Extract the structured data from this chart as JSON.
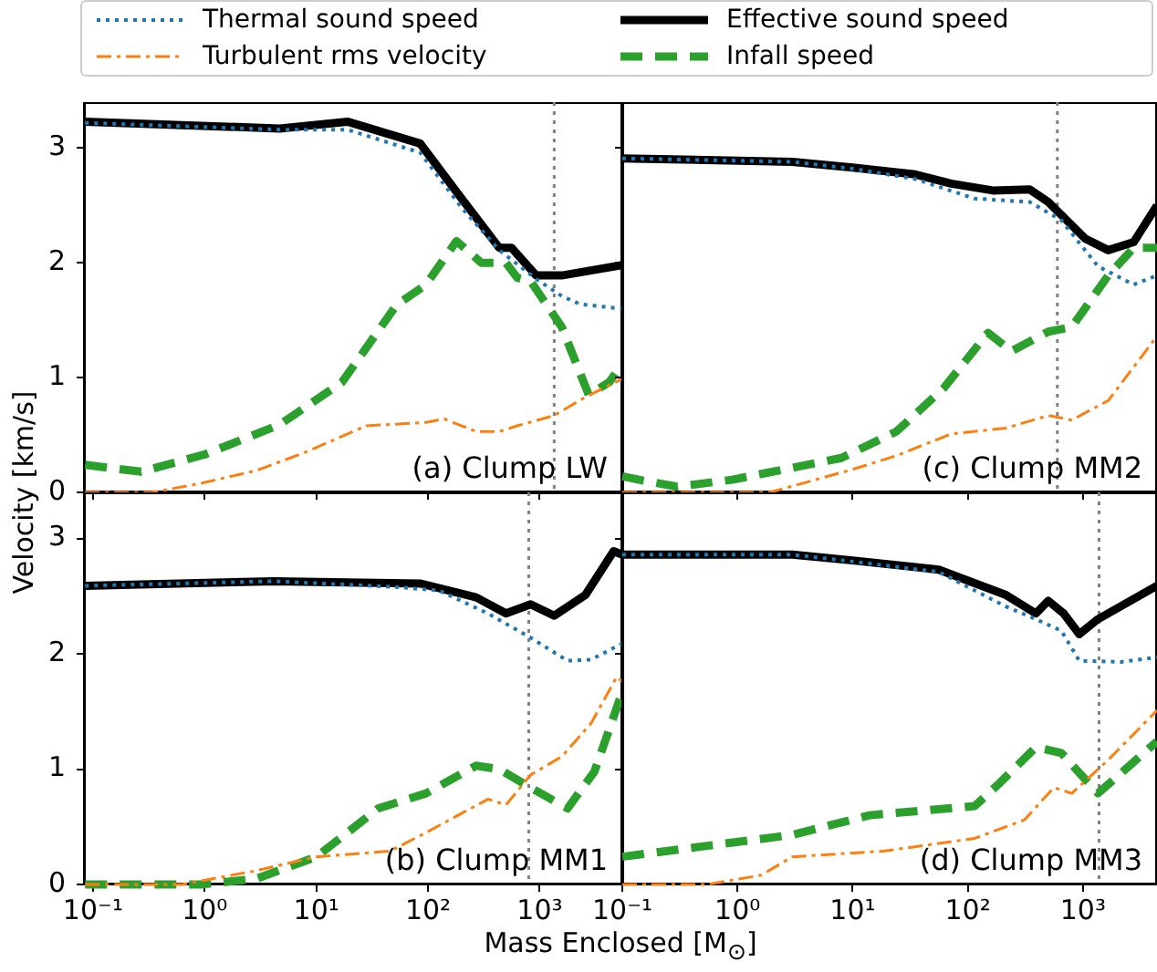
{
  "chart_data": [
    {
      "type": "line",
      "log": "x",
      "legend": "top",
      "ylabel": "Velocity [km/s]",
      "tick_labels": "y",
      "annotations": [
        "(a) Clump LW"
      ],
      "xlim": [
        0.083,
        5500
      ],
      "xticks": [
        {
          "value": 0.1,
          "label": null
        },
        {
          "value": 1,
          "label": null
        },
        {
          "value": 10,
          "label": null
        },
        {
          "value": 100,
          "label": null
        },
        {
          "value": 1000,
          "label": null
        }
      ],
      "ylim": [
        0,
        3.4
      ],
      "yticks": [
        0,
        1,
        2,
        3
      ],
      "ref_lines": [
        {
          "axis": "x",
          "value": 1350,
          "color": "#808080",
          "line_style": "dotted"
        }
      ],
      "series": [
        {
          "name": "Thermal sound speed",
          "color": "#1f77b4",
          "line_style": "dotted",
          "x": [
            0.085,
            4.7,
            19,
            85,
            200,
            435,
            930,
            1580,
            2300,
            5500
          ],
          "values": [
            3.22,
            3.16,
            3.16,
            2.96,
            2.48,
            2.11,
            1.86,
            1.71,
            1.64,
            1.6
          ]
        },
        {
          "name": "Turbulent rms velocity",
          "color": "#ff7f0e",
          "line_style": "dashdot",
          "x": [
            0.085,
            0.34,
            0.93,
            2.9,
            8,
            28,
            96,
            140,
            270,
            435,
            630,
            1350,
            2570,
            5500
          ],
          "values": [
            0,
            0,
            0.08,
            0.19,
            0.35,
            0.58,
            0.61,
            0.64,
            0.53,
            0.53,
            0.58,
            0.67,
            0.83,
            0.99
          ]
        },
        {
          "name": "Effective sound speed",
          "color": "#000000",
          "line_style": "solid",
          "x": [
            0.085,
            4.7,
            19,
            85,
            200,
            435,
            560,
            930,
            1580,
            5500
          ],
          "values": [
            3.23,
            3.17,
            3.23,
            3.04,
            2.56,
            2.13,
            2.13,
            1.89,
            1.89,
            1.98
          ]
        },
        {
          "name": "Infall speed",
          "color": "#2ca02c",
          "line_style": "dashed",
          "x": [
            0.085,
            0.27,
            1,
            4.7,
            17,
            52,
            96,
            180,
            300,
            500,
            630,
            830,
            1580,
            2750,
            4200,
            5500
          ],
          "values": [
            0.24,
            0.18,
            0.33,
            0.59,
            0.96,
            1.63,
            1.81,
            2.19,
            2.0,
            2.0,
            1.87,
            1.84,
            1.44,
            0.85,
            0.96,
            1.12
          ]
        }
      ]
    },
    {
      "type": "line",
      "log": "x",
      "tick_labels": false,
      "annotations": [
        "(c) Clump MM2"
      ],
      "xlim": [
        0.1,
        4400
      ],
      "xticks": [
        {
          "value": 0.1,
          "label": null
        },
        {
          "value": 1,
          "label": null
        },
        {
          "value": 10,
          "label": null
        },
        {
          "value": 100,
          "label": null
        },
        {
          "value": 1000,
          "label": null
        }
      ],
      "ylim": [
        0,
        3.4
      ],
      "yticks": [
        {
          "value": 0,
          "label": null
        },
        {
          "value": 1,
          "label": null
        },
        {
          "value": 2,
          "label": null
        },
        {
          "value": 3,
          "label": null
        }
      ],
      "ref_lines": [
        {
          "axis": "x",
          "value": 600,
          "color": "#808080",
          "line_style": "dotted"
        }
      ],
      "series": [
        {
          "color": "#1f77b4",
          "line_style": "dotted",
          "x": [
            0.1,
            3,
            10,
            35,
            115,
            345,
            650,
            1350,
            2760,
            4400
          ],
          "values": [
            2.91,
            2.88,
            2.82,
            2.73,
            2.56,
            2.53,
            2.37,
            1.97,
            1.81,
            1.89
          ]
        },
        {
          "color": "#ff7f0e",
          "line_style": "dashdot",
          "x": [
            0.1,
            1.9,
            10,
            24,
            72,
            215,
            500,
            800,
            1660,
            4400
          ],
          "values": [
            0,
            0,
            0.2,
            0.32,
            0.51,
            0.56,
            0.67,
            0.63,
            0.8,
            1.36
          ]
        },
        {
          "color": "#000000",
          "line_style": "solid",
          "x": [
            0.1,
            3,
            10,
            35,
            72,
            165,
            345,
            500,
            1050,
            1660,
            2760,
            4400
          ],
          "values": [
            2.91,
            2.88,
            2.83,
            2.77,
            2.69,
            2.63,
            2.64,
            2.53,
            2.21,
            2.11,
            2.18,
            2.5
          ]
        },
        {
          "color": "#2ca02c",
          "line_style": "dashed",
          "x": [
            0.1,
            0.14,
            0.3,
            0.9,
            8,
            24,
            62,
            150,
            240,
            500,
            800,
            1660,
            2760,
            4400
          ],
          "values": [
            0.14,
            0.11,
            0.05,
            0.11,
            0.3,
            0.53,
            0.91,
            1.39,
            1.23,
            1.4,
            1.44,
            1.89,
            2.13,
            2.13
          ]
        }
      ]
    },
    {
      "type": "line",
      "log": "x",
      "xlabel": "Mass Enclosed [M$_{⊙}$]",
      "annotations": [
        "(b) Clump MM1"
      ],
      "xlim": [
        0.083,
        5500
      ],
      "xticks": [
        {
          "value": 0.1,
          "label": "10⁻¹"
        },
        {
          "value": 1,
          "label": "10⁰"
        },
        {
          "value": 10,
          "label": "10¹"
        },
        {
          "value": 100,
          "label": "10²"
        },
        {
          "value": 1000,
          "label": "10³"
        }
      ],
      "ylim": [
        0,
        3.4
      ],
      "yticks": [
        0,
        1,
        2,
        3
      ],
      "ref_lines": [
        {
          "axis": "x",
          "value": 800,
          "color": "#808080",
          "line_style": "dotted"
        }
      ],
      "series": [
        {
          "color": "#1f77b4",
          "line_style": "dotted",
          "x": [
            0.085,
            4.2,
            50,
            125,
            345,
            830,
            1780,
            2900,
            5500
          ],
          "values": [
            2.59,
            2.63,
            2.58,
            2.55,
            2.35,
            2.14,
            1.94,
            1.95,
            2.09
          ]
        },
        {
          "color": "#ff7f0e",
          "line_style": "dashdot",
          "x": [
            0.085,
            0.63,
            2.9,
            10,
            46,
            96,
            345,
            500,
            830,
            1580,
            2900,
            4900,
            5500
          ],
          "values": [
            0,
            0,
            0.12,
            0.24,
            0.29,
            0.45,
            0.74,
            0.69,
            0.95,
            1.11,
            1.4,
            1.8,
            1.76
          ]
        },
        {
          "color": "#000000",
          "line_style": "solid",
          "x": [
            0.085,
            4.2,
            85,
            270,
            500,
            830,
            1350,
            2570,
            4600,
            5500
          ],
          "values": [
            2.59,
            2.63,
            2.61,
            2.49,
            2.35,
            2.43,
            2.33,
            2.51,
            2.89,
            2.86
          ]
        },
        {
          "color": "#2ca02c",
          "line_style": "dashed",
          "x": [
            0.085,
            0.93,
            2.9,
            10,
            36,
            96,
            270,
            435,
            830,
            1780,
            3100,
            5500
          ],
          "values": [
            0,
            0,
            0.05,
            0.24,
            0.66,
            0.79,
            1.03,
            1.0,
            0.84,
            0.66,
            0.98,
            1.67
          ]
        }
      ]
    },
    {
      "type": "line",
      "log": "x",
      "tick_labels": "x",
      "annotations": [
        "(d) Clump MM3"
      ],
      "xlim": [
        0.1,
        4400
      ],
      "xticks": [
        {
          "value": 0.1,
          "label": "10⁻¹"
        },
        {
          "value": 1,
          "label": "10⁰"
        },
        {
          "value": 10,
          "label": "10¹"
        },
        {
          "value": 100,
          "label": "10²"
        },
        {
          "value": 1000,
          "label": "10³"
        }
      ],
      "ylim": [
        0,
        3.4
      ],
      "yticks": [
        {
          "value": 0,
          "label": null
        },
        {
          "value": 1,
          "label": null
        },
        {
          "value": 2,
          "label": null
        },
        {
          "value": 3,
          "label": null
        }
      ],
      "ref_lines": [
        {
          "axis": "x",
          "value": 1380,
          "color": "#808080",
          "line_style": "dotted"
        }
      ],
      "series": [
        {
          "color": "#1f77b4",
          "line_style": "dotted",
          "x": [
            0.1,
            3,
            10,
            56,
            215,
            390,
            650,
            930,
            2140,
            4400
          ],
          "values": [
            2.86,
            2.86,
            2.8,
            2.71,
            2.41,
            2.3,
            2.2,
            1.94,
            1.93,
            1.97
          ]
        },
        {
          "color": "#ff7f0e",
          "line_style": "dashdot",
          "x": [
            0.1,
            0.54,
            1.6,
            3,
            19,
            115,
            310,
            560,
            800,
            1660,
            4400
          ],
          "values": [
            0,
            0,
            0.08,
            0.24,
            0.29,
            0.4,
            0.56,
            0.84,
            0.79,
            1.08,
            1.51
          ]
        },
        {
          "color": "#000000",
          "line_style": "solid",
          "x": [
            0.1,
            3,
            10,
            56,
            215,
            390,
            500,
            680,
            930,
            1350,
            4400
          ],
          "values": [
            2.86,
            2.86,
            2.81,
            2.73,
            2.51,
            2.35,
            2.46,
            2.35,
            2.17,
            2.3,
            2.59
          ]
        },
        {
          "color": "#2ca02c",
          "line_style": "dashed",
          "x": [
            0.1,
            3,
            14,
            115,
            185,
            390,
            650,
            1350,
            4400
          ],
          "values": [
            0.24,
            0.43,
            0.6,
            0.68,
            0.87,
            1.19,
            1.14,
            0.79,
            1.24
          ]
        }
      ]
    }
  ]
}
